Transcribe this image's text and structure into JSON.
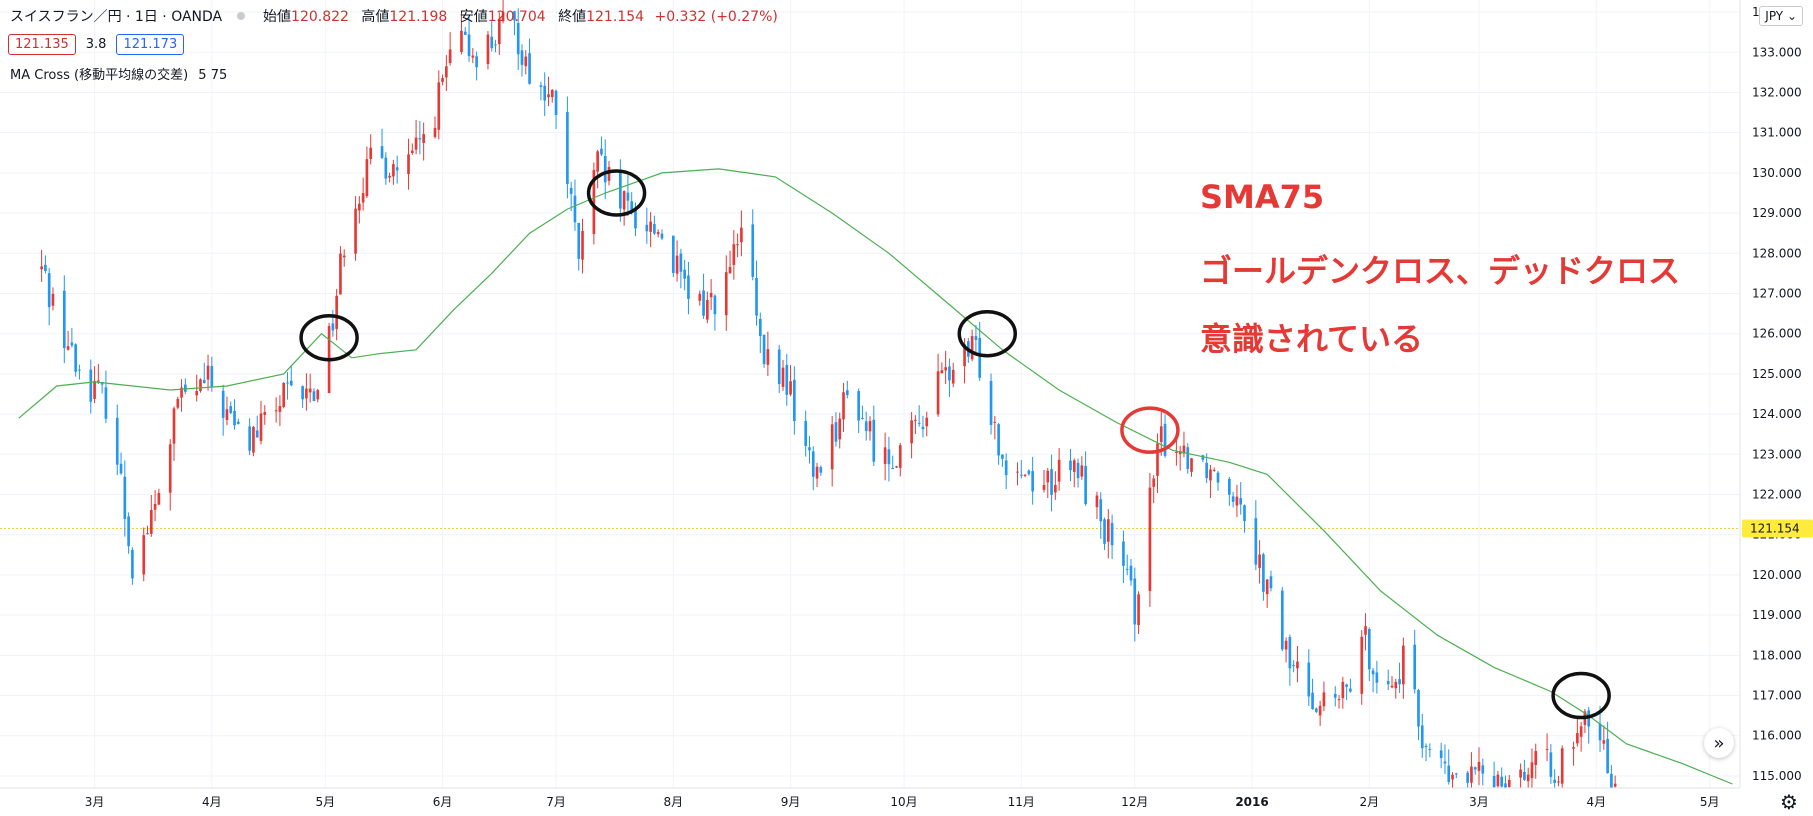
{
  "header": {
    "symbol": "スイスフラン／円 · 1日 · OANDA",
    "open_label": "始値",
    "open": "120.822",
    "high_label": "高値",
    "high": "121.198",
    "low_label": "安値",
    "low": "120.704",
    "close_label": "終値",
    "close": "121.154",
    "change": "+0.332 (+0.27%)"
  },
  "quote": {
    "bid": "121.135",
    "spread": "3.8",
    "ask": "121.173"
  },
  "indicator": {
    "name": "MA Cross (移動平均線の交差)",
    "params": "5 75"
  },
  "currency_selector": "JPY ⌄",
  "annotation": {
    "line1": "SMA75",
    "line2": "ゴールデンクロス、デッドクロス",
    "line3": "意識されている"
  },
  "icons": {
    "scroll": "double-chevron-right-icon",
    "settings": "gear-icon"
  },
  "colors": {
    "up": "#e53935",
    "down": "#2196f3",
    "sma": "#4caf50",
    "marker": "#111111",
    "marker_red": "#e53935",
    "last_price": "#ffeb3b"
  },
  "chart_data": {
    "type": "candlestick",
    "y_ticks": [
      "115.000",
      "116.000",
      "117.000",
      "118.000",
      "119.000",
      "120.000",
      "121.000",
      "122.000",
      "123.000",
      "124.000",
      "125.000",
      "126.000",
      "127.000",
      "128.000",
      "129.000",
      "130.000",
      "131.000",
      "132.000",
      "133.000",
      "134.000"
    ],
    "ylim": [
      114.7,
      134.3
    ],
    "x_ticks": [
      {
        "label": "3月",
        "day": 50
      },
      {
        "label": "4月",
        "day": 81
      },
      {
        "label": "5月",
        "day": 111
      },
      {
        "label": "6月",
        "day": 142
      },
      {
        "label": "7月",
        "day": 172
      },
      {
        "label": "8月",
        "day": 203
      },
      {
        "label": "9月",
        "day": 234
      },
      {
        "label": "10月",
        "day": 264
      },
      {
        "label": "11月",
        "day": 295
      },
      {
        "label": "12月",
        "day": 325
      },
      {
        "label": "2016",
        "day": 356
      },
      {
        "label": "2月",
        "day": 387
      },
      {
        "label": "3月",
        "day": 416
      },
      {
        "label": "4月",
        "day": 447
      },
      {
        "label": "5月",
        "day": 477
      }
    ],
    "last_price": 121.154,
    "last_price_label": "121.154",
    "sma_label": "SMA75",
    "waypoints": [
      {
        "day": 36,
        "price": 127.6
      },
      {
        "day": 45,
        "price": 125.2
      },
      {
        "day": 54,
        "price": 124.2
      },
      {
        "day": 60,
        "price": 120.3
      },
      {
        "day": 66,
        "price": 121.6
      },
      {
        "day": 72,
        "price": 124.3
      },
      {
        "day": 80,
        "price": 124.8
      },
      {
        "day": 90,
        "price": 123.2
      },
      {
        "day": 100,
        "price": 124.4
      },
      {
        "day": 108,
        "price": 124.5
      },
      {
        "day": 113,
        "price": 126.4
      },
      {
        "day": 117,
        "price": 129.0
      },
      {
        "day": 124,
        "price": 130.4
      },
      {
        "day": 132,
        "price": 130.0
      },
      {
        "day": 139,
        "price": 131.2
      },
      {
        "day": 145,
        "price": 133.2
      },
      {
        "day": 152,
        "price": 133.0
      },
      {
        "day": 160,
        "price": 133.8
      },
      {
        "day": 166,
        "price": 132.3
      },
      {
        "day": 172,
        "price": 131.6
      },
      {
        "day": 178,
        "price": 127.9
      },
      {
        "day": 183,
        "price": 130.2
      },
      {
        "day": 190,
        "price": 129.1
      },
      {
        "day": 200,
        "price": 128.5
      },
      {
        "day": 208,
        "price": 126.6
      },
      {
        "day": 216,
        "price": 127.0
      },
      {
        "day": 222,
        "price": 128.8
      },
      {
        "day": 226,
        "price": 125.5
      },
      {
        "day": 233,
        "price": 124.8
      },
      {
        "day": 240,
        "price": 122.5
      },
      {
        "day": 250,
        "price": 124.6
      },
      {
        "day": 258,
        "price": 122.8
      },
      {
        "day": 266,
        "price": 123.4
      },
      {
        "day": 274,
        "price": 124.9
      },
      {
        "day": 283,
        "price": 125.6
      },
      {
        "day": 290,
        "price": 123.0
      },
      {
        "day": 300,
        "price": 122.3
      },
      {
        "day": 310,
        "price": 122.6
      },
      {
        "day": 318,
        "price": 121.0
      },
      {
        "day": 325,
        "price": 119.2
      },
      {
        "day": 328,
        "price": 121.3
      },
      {
        "day": 332,
        "price": 123.4
      },
      {
        "day": 340,
        "price": 123.0
      },
      {
        "day": 348,
        "price": 122.5
      },
      {
        "day": 353,
        "price": 122.0
      },
      {
        "day": 360,
        "price": 119.6
      },
      {
        "day": 366,
        "price": 117.8
      },
      {
        "day": 374,
        "price": 116.8
      },
      {
        "day": 380,
        "price": 116.9
      },
      {
        "day": 386,
        "price": 118.3
      },
      {
        "day": 392,
        "price": 117.1
      },
      {
        "day": 396,
        "price": 117.8
      },
      {
        "day": 401,
        "price": 116.0
      },
      {
        "day": 408,
        "price": 114.9
      },
      {
        "day": 440,
        "price": 115.3
      },
      {
        "day": 445,
        "price": 116.5
      },
      {
        "day": 448,
        "price": 115.8
      },
      {
        "day": 452,
        "price": 114.9
      }
    ],
    "sma75": [
      {
        "day": 30,
        "price": 123.9
      },
      {
        "day": 40,
        "price": 124.7
      },
      {
        "day": 50,
        "price": 124.8
      },
      {
        "day": 70,
        "price": 124.6
      },
      {
        "day": 85,
        "price": 124.7
      },
      {
        "day": 100,
        "price": 125.0
      },
      {
        "day": 110,
        "price": 126.0
      },
      {
        "day": 118,
        "price": 125.4
      },
      {
        "day": 125,
        "price": 125.5
      },
      {
        "day": 135,
        "price": 125.6
      },
      {
        "day": 145,
        "price": 126.6
      },
      {
        "day": 155,
        "price": 127.5
      },
      {
        "day": 165,
        "price": 128.5
      },
      {
        "day": 175,
        "price": 129.1
      },
      {
        "day": 185,
        "price": 129.5
      },
      {
        "day": 200,
        "price": 130.0
      },
      {
        "day": 215,
        "price": 130.1
      },
      {
        "day": 230,
        "price": 129.9
      },
      {
        "day": 245,
        "price": 129.0
      },
      {
        "day": 260,
        "price": 128.0
      },
      {
        "day": 275,
        "price": 126.8
      },
      {
        "day": 290,
        "price": 125.6
      },
      {
        "day": 305,
        "price": 124.6
      },
      {
        "day": 320,
        "price": 123.8
      },
      {
        "day": 335,
        "price": 123.1
      },
      {
        "day": 350,
        "price": 122.8
      },
      {
        "day": 360,
        "price": 122.5
      },
      {
        "day": 375,
        "price": 121.1
      },
      {
        "day": 390,
        "price": 119.6
      },
      {
        "day": 405,
        "price": 118.5
      },
      {
        "day": 420,
        "price": 117.7
      },
      {
        "day": 435,
        "price": 117.1
      },
      {
        "day": 445,
        "price": 116.5
      },
      {
        "day": 455,
        "price": 115.8
      },
      {
        "day": 470,
        "price": 115.3
      },
      {
        "day": 483,
        "price": 114.8
      }
    ],
    "cross_markers": [
      {
        "day": 112,
        "price": 125.9,
        "color": "black"
      },
      {
        "day": 188,
        "price": 129.5,
        "color": "black"
      },
      {
        "day": 286,
        "price": 126.0,
        "color": "black"
      },
      {
        "day": 329,
        "price": 123.6,
        "color": "red"
      },
      {
        "day": 443,
        "price": 117.0,
        "color": "black"
      }
    ]
  }
}
